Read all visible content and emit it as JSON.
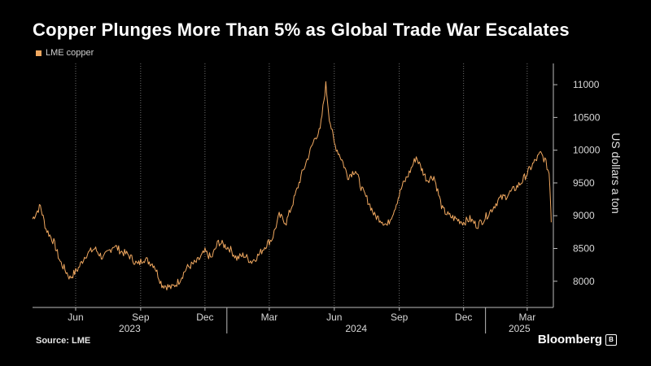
{
  "title": "Copper Plunges More Than 5% as Global Trade War Escalates",
  "legend": {
    "label": "LME copper",
    "color": "#f0a860"
  },
  "source": "Source: LME",
  "brand": "Bloomberg",
  "chart_data": {
    "type": "line",
    "title": "Copper Plunges More Than 5% as Global Trade War Escalates",
    "ylabel": "US dollars a ton",
    "ylim": [
      7600,
      11200
    ],
    "yticks": [
      8000,
      8500,
      9000,
      9500,
      10000,
      10500,
      11000
    ],
    "y_axis_position": "right",
    "grid": "vertical dotted",
    "legend_position": "top-left",
    "xlim": [
      "2023-04-01",
      "2025-04-07"
    ],
    "month_ticks": [
      {
        "date": "2023-06-01",
        "label": "Jun"
      },
      {
        "date": "2023-09-01",
        "label": "Sep"
      },
      {
        "date": "2023-12-01",
        "label": "Dec"
      },
      {
        "date": "2024-03-01",
        "label": "Mar"
      },
      {
        "date": "2024-06-01",
        "label": "Jun"
      },
      {
        "date": "2024-09-01",
        "label": "Sep"
      },
      {
        "date": "2024-12-01",
        "label": "Dec"
      },
      {
        "date": "2025-03-01",
        "label": "Mar"
      }
    ],
    "year_ticks": [
      {
        "date": "2023-01-01",
        "label": "2023"
      },
      {
        "date": "2024-01-01",
        "label": "2024"
      },
      {
        "date": "2025-01-01",
        "label": "2025"
      }
    ],
    "series": [
      {
        "name": "LME copper",
        "color": "#f0a860",
        "x": [
          "2023-04-01",
          "2023-04-12",
          "2023-04-20",
          "2023-05-01",
          "2023-05-10",
          "2023-05-24",
          "2023-06-05",
          "2023-06-15",
          "2023-06-28",
          "2023-07-10",
          "2023-07-25",
          "2023-08-05",
          "2023-08-15",
          "2023-08-28",
          "2023-09-05",
          "2023-09-20",
          "2023-10-01",
          "2023-10-15",
          "2023-10-25",
          "2023-11-05",
          "2023-11-20",
          "2023-12-01",
          "2023-12-10",
          "2023-12-20",
          "2024-01-05",
          "2024-01-15",
          "2024-01-25",
          "2024-02-05",
          "2024-02-15",
          "2024-02-25",
          "2024-03-05",
          "2024-03-15",
          "2024-03-25",
          "2024-04-05",
          "2024-04-15",
          "2024-04-25",
          "2024-05-05",
          "2024-05-12",
          "2024-05-20",
          "2024-05-25",
          "2024-06-01",
          "2024-06-12",
          "2024-06-20",
          "2024-07-01",
          "2024-07-10",
          "2024-07-20",
          "2024-07-28",
          "2024-08-05",
          "2024-08-15",
          "2024-08-25",
          "2024-09-05",
          "2024-09-15",
          "2024-09-25",
          "2024-10-01",
          "2024-10-10",
          "2024-10-20",
          "2024-11-01",
          "2024-11-10",
          "2024-11-20",
          "2024-12-01",
          "2024-12-10",
          "2024-12-20",
          "2024-12-30",
          "2025-01-10",
          "2025-01-20",
          "2025-01-30",
          "2025-02-10",
          "2025-02-20",
          "2025-03-01",
          "2025-03-10",
          "2025-03-20",
          "2025-03-26",
          "2025-04-01",
          "2025-04-03",
          "2025-04-04"
        ],
        "values": [
          8950,
          9150,
          8800,
          8600,
          8300,
          8050,
          8200,
          8400,
          8500,
          8350,
          8550,
          8450,
          8400,
          8250,
          8350,
          8250,
          7950,
          7900,
          8000,
          8200,
          8300,
          8450,
          8350,
          8600,
          8500,
          8350,
          8400,
          8300,
          8400,
          8550,
          8650,
          9000,
          8900,
          9250,
          9600,
          9900,
          10200,
          10300,
          11000,
          10500,
          10100,
          9850,
          9600,
          9700,
          9400,
          9200,
          9000,
          8950,
          8850,
          9100,
          9450,
          9650,
          9900,
          9750,
          9550,
          9600,
          9100,
          9000,
          8950,
          8900,
          8950,
          8850,
          8950,
          9100,
          9250,
          9300,
          9400,
          9500,
          9650,
          9800,
          9950,
          9850,
          9650,
          9250,
          8900
        ]
      }
    ]
  }
}
